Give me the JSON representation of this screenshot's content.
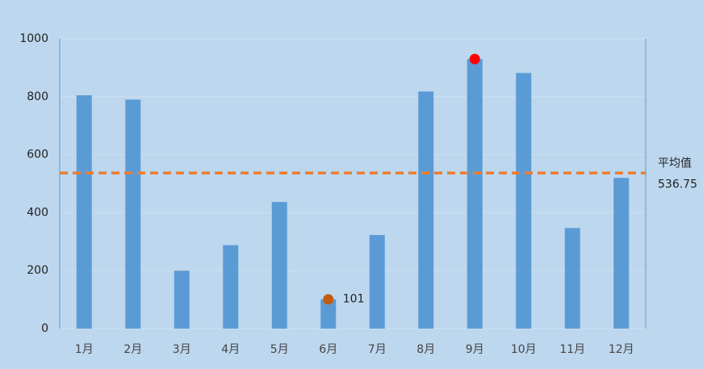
{
  "chart_data": {
    "type": "bar",
    "categories": [
      "1月",
      "2月",
      "3月",
      "4月",
      "5月",
      "6月",
      "7月",
      "8月",
      "9月",
      "10月",
      "11月",
      "12月"
    ],
    "values": [
      805,
      790,
      200,
      288,
      437,
      101,
      323,
      818,
      930,
      882,
      347,
      520
    ],
    "color": "#5b9bd5",
    "ylim": [
      0,
      1000
    ],
    "yticks": [
      0,
      200,
      400,
      600,
      800,
      1000
    ],
    "grid": true,
    "average": {
      "label": "平均值",
      "value": 536.75,
      "color": "#ed7d31"
    },
    "max_marker_color": "#ff0000",
    "min_marker_color": "#c55a11",
    "label_min": true
  }
}
